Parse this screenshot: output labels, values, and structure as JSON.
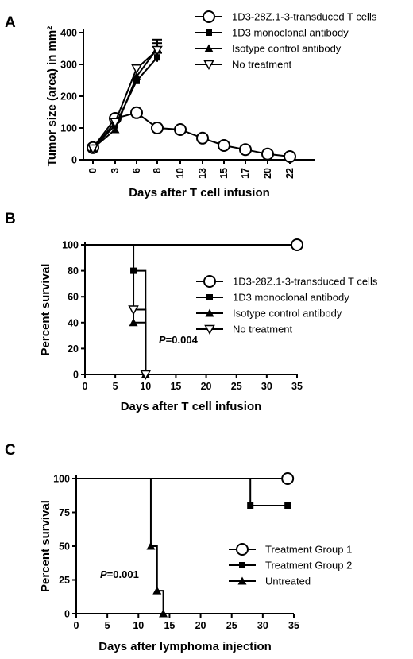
{
  "chart_data": [
    {
      "panel": "A",
      "type": "line",
      "xlabel": "Days after T cell infusion",
      "ylabel": "Tumor size (area) in mm²",
      "xscale": "categorical",
      "categories": [
        "0",
        "3",
        "6",
        "8",
        "10",
        "13",
        "15",
        "17",
        "20",
        "22"
      ],
      "ylim": [
        0,
        400
      ],
      "yticks": [
        0,
        100,
        200,
        300,
        400
      ],
      "legend_position": "top-right",
      "series": [
        {
          "name": "1D3-28Z.1-3-transduced T cells",
          "marker": "open-circle",
          "x": [
            "0",
            "3",
            "6",
            "8",
            "10",
            "13",
            "15",
            "17",
            "20",
            "22"
          ],
          "values": [
            38,
            130,
            148,
            100,
            95,
            68,
            45,
            32,
            18,
            10
          ]
        },
        {
          "name": "1D3 monoclonal antibody",
          "marker": "filled-square",
          "x": [
            "0",
            "3",
            "6",
            "8"
          ],
          "values": [
            37,
            108,
            248,
            322
          ]
        },
        {
          "name": "Isotype control antibody",
          "marker": "filled-triangle",
          "x": [
            "0",
            "3",
            "6",
            "8"
          ],
          "values": [
            36,
            95,
            262,
            350
          ]
        },
        {
          "name": "No treatment",
          "marker": "open-triangle-down",
          "x": [
            "0",
            "3",
            "6",
            "8"
          ],
          "values": [
            35,
            118,
            287,
            345
          ]
        }
      ]
    },
    {
      "panel": "B",
      "type": "line",
      "subtype": "kaplan-meier",
      "xlabel": "Days after T cell infusion",
      "ylabel": "Percent survival",
      "xlim": [
        0,
        35
      ],
      "xticks": [
        0,
        5,
        10,
        15,
        20,
        25,
        30,
        35
      ],
      "ylim": [
        0,
        100
      ],
      "yticks": [
        0,
        20,
        40,
        60,
        80,
        100
      ],
      "annotation": {
        "p_label": "P",
        "p_value": "=0.004"
      },
      "legend_position": "middle-right",
      "series": [
        {
          "name": "1D3-28Z.1-3-transduced T cells",
          "marker": "open-circle",
          "steps": [
            [
              0,
              100
            ],
            [
              35,
              100
            ]
          ],
          "markers": [
            [
              35,
              100
            ]
          ]
        },
        {
          "name": "1D3 monoclonal antibody",
          "marker": "filled-square",
          "steps": [
            [
              0,
              100
            ],
            [
              8,
              100
            ],
            [
              8,
              80
            ],
            [
              10,
              80
            ],
            [
              10,
              0
            ]
          ],
          "markers": [
            [
              8,
              80
            ],
            [
              10,
              0
            ]
          ]
        },
        {
          "name": "Isotype control antibody",
          "marker": "filled-triangle",
          "steps": [
            [
              0,
              100
            ],
            [
              8,
              100
            ],
            [
              8,
              40
            ],
            [
              10,
              40
            ],
            [
              10,
              0
            ]
          ],
          "markers": [
            [
              8,
              40
            ],
            [
              10,
              0
            ]
          ]
        },
        {
          "name": "No treatment",
          "marker": "open-triangle-down",
          "steps": [
            [
              0,
              100
            ],
            [
              8,
              100
            ],
            [
              8,
              50
            ],
            [
              10,
              50
            ],
            [
              10,
              0
            ]
          ],
          "markers": [
            [
              8,
              50
            ],
            [
              10,
              0
            ]
          ]
        }
      ]
    },
    {
      "panel": "C",
      "type": "line",
      "subtype": "kaplan-meier",
      "xlabel": "Days after lymphoma injection",
      "ylabel": "Percent survival",
      "xlim": [
        0,
        35
      ],
      "xticks": [
        0,
        5,
        10,
        15,
        20,
        25,
        30,
        35
      ],
      "ylim": [
        0,
        100
      ],
      "yticks": [
        0,
        25,
        50,
        75,
        100
      ],
      "annotation": {
        "p_label": "P",
        "p_value": "=0.001"
      },
      "legend_position": "bottom-right",
      "series": [
        {
          "name": "Treatment Group 1",
          "marker": "open-circle",
          "steps": [
            [
              0,
              100
            ],
            [
              34,
              100
            ]
          ],
          "markers": [
            [
              34,
              100
            ]
          ]
        },
        {
          "name": "Treatment Group 2",
          "marker": "filled-square",
          "steps": [
            [
              0,
              100
            ],
            [
              28,
              100
            ],
            [
              28,
              80
            ],
            [
              34,
              80
            ]
          ],
          "markers": [
            [
              28,
              80
            ],
            [
              34,
              80
            ]
          ]
        },
        {
          "name": "Untreated",
          "marker": "filled-triangle",
          "steps": [
            [
              0,
              100
            ],
            [
              12,
              100
            ],
            [
              12,
              50
            ],
            [
              13,
              50
            ],
            [
              13,
              17
            ],
            [
              14,
              17
            ],
            [
              14,
              0
            ]
          ],
          "markers": [
            [
              12,
              50
            ],
            [
              13,
              17
            ],
            [
              14,
              0
            ]
          ]
        }
      ]
    }
  ]
}
